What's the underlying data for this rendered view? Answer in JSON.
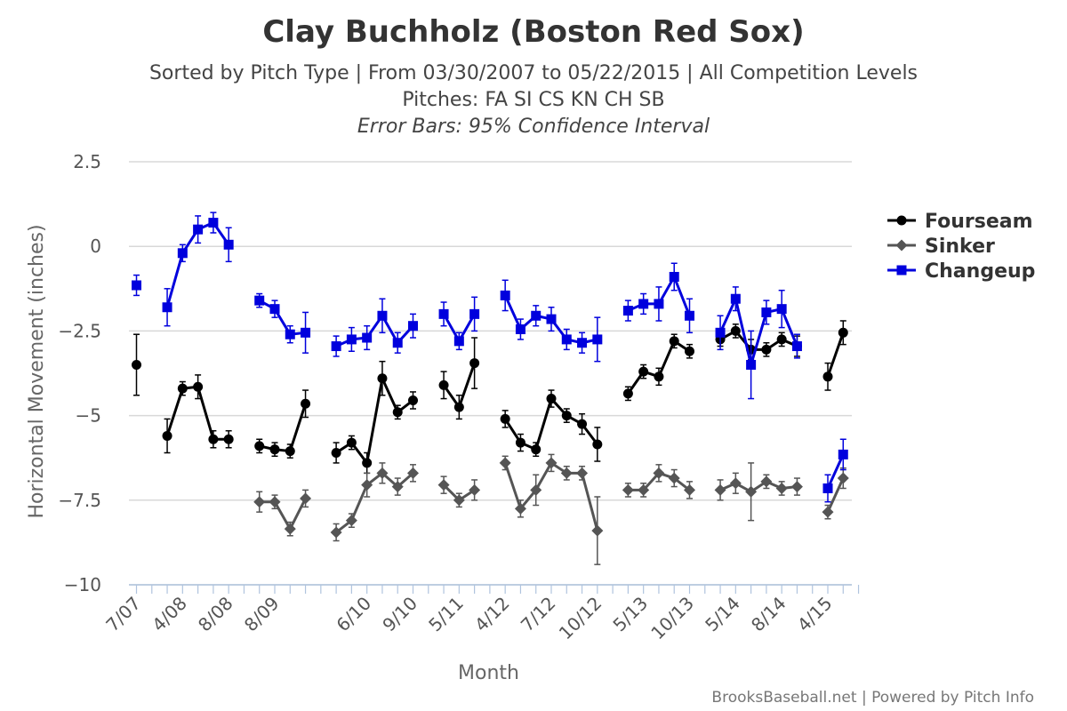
{
  "chart_data": {
    "type": "line",
    "title": "Clay Buchholz (Boston Red Sox)",
    "subtitle_lines": [
      "Sorted by Pitch Type | From 03/30/2007 to 05/22/2015 | All Competition Levels",
      "Pitches: FA SI CS KN CH SB"
    ],
    "error_bar_note": "Error Bars: 95% Confidence Interval",
    "xlabel": "Month",
    "ylabel": "Horizontal Movement (inches)",
    "ylim": [
      -10,
      2.5
    ],
    "y_ticks": [
      {
        "v": 2.5,
        "label": "2.5"
      },
      {
        "v": 0,
        "label": "0"
      },
      {
        "v": -2.5,
        "label": "−2.5"
      },
      {
        "v": -5,
        "label": "−5"
      },
      {
        "v": -7.5,
        "label": "−7.5"
      },
      {
        "v": -10,
        "label": "−10"
      }
    ],
    "x_index_range": [
      0,
      47
    ],
    "x_ticks": [
      {
        "i": 0,
        "label": "7/07"
      },
      {
        "i": 3,
        "label": "4/08"
      },
      {
        "i": 6,
        "label": "8/08"
      },
      {
        "i": 9,
        "label": "8/09"
      },
      {
        "i": 15,
        "label": "6/10"
      },
      {
        "i": 18,
        "label": "9/10"
      },
      {
        "i": 21,
        "label": "5/11"
      },
      {
        "i": 24,
        "label": "4/12"
      },
      {
        "i": 27,
        "label": "7/12"
      },
      {
        "i": 30,
        "label": "10/12"
      },
      {
        "i": 33,
        "label": "5/13"
      },
      {
        "i": 36,
        "label": "10/13"
      },
      {
        "i": 39,
        "label": "5/14"
      },
      {
        "i": 42,
        "label": "8/14"
      },
      {
        "i": 45,
        "label": "4/15"
      }
    ],
    "grid": true,
    "legend_position": "right",
    "series": [
      {
        "name": "Fourseam",
        "color": "#000000",
        "marker": "circle",
        "segments": [
          [
            [
              0,
              -3.5,
              0.9
            ]
          ],
          [
            [
              2,
              -5.6,
              0.5
            ],
            [
              3,
              -4.2,
              0.2
            ],
            [
              4,
              -4.15,
              0.35
            ],
            [
              5,
              -5.7,
              0.25
            ],
            [
              6,
              -5.7,
              0.25
            ]
          ],
          [
            [
              8,
              -5.9,
              0.2
            ],
            [
              9,
              -6.0,
              0.2
            ],
            [
              10,
              -6.05,
              0.2
            ],
            [
              11,
              -4.65,
              0.4
            ]
          ],
          [
            [
              13,
              -6.1,
              0.3
            ],
            [
              14,
              -5.8,
              0.2
            ],
            [
              15,
              -6.4,
              0.3
            ],
            [
              16,
              -3.9,
              0.5
            ],
            [
              17,
              -4.9,
              0.2
            ],
            [
              18,
              -4.55,
              0.25
            ]
          ],
          [
            [
              20,
              -4.1,
              0.4
            ],
            [
              21,
              -4.75,
              0.35
            ],
            [
              22,
              -3.45,
              0.75
            ]
          ],
          [
            [
              24,
              -5.1,
              0.25
            ],
            [
              25,
              -5.8,
              0.25
            ],
            [
              26,
              -6.0,
              0.2
            ],
            [
              27,
              -4.5,
              0.25
            ],
            [
              28,
              -5.0,
              0.2
            ],
            [
              29,
              -5.25,
              0.3
            ],
            [
              30,
              -5.85,
              0.5
            ]
          ],
          [
            [
              32,
              -4.35,
              0.2
            ],
            [
              33,
              -3.7,
              0.2
            ],
            [
              34,
              -3.85,
              0.25
            ],
            [
              35,
              -2.8,
              0.2
            ],
            [
              36,
              -3.1,
              0.2
            ]
          ],
          [
            [
              38,
              -2.75,
              0.2
            ],
            [
              39,
              -2.5,
              0.2
            ],
            [
              40,
              -3.05,
              0.3
            ],
            [
              41,
              -3.05,
              0.2
            ],
            [
              42,
              -2.75,
              0.2
            ],
            [
              43,
              -2.95,
              0.3
            ]
          ],
          [
            [
              45,
              -3.85,
              0.4
            ],
            [
              46,
              -2.55,
              0.35
            ]
          ]
        ]
      },
      {
        "name": "Sinker",
        "color": "#555555",
        "marker": "diamond",
        "segments": [
          [
            [
              8,
              -7.55,
              0.3
            ],
            [
              9,
              -7.55,
              0.2
            ],
            [
              10,
              -8.35,
              0.2
            ],
            [
              11,
              -7.45,
              0.25
            ]
          ],
          [
            [
              13,
              -8.45,
              0.25
            ],
            [
              14,
              -8.1,
              0.2
            ],
            [
              15,
              -7.05,
              0.35
            ],
            [
              16,
              -6.7,
              0.3
            ],
            [
              17,
              -7.1,
              0.25
            ],
            [
              18,
              -6.7,
              0.25
            ]
          ],
          [
            [
              20,
              -7.05,
              0.25
            ],
            [
              21,
              -7.5,
              0.2
            ],
            [
              22,
              -7.2,
              0.3
            ]
          ],
          [
            [
              24,
              -6.4,
              0.2
            ],
            [
              25,
              -7.75,
              0.25
            ],
            [
              26,
              -7.2,
              0.45
            ],
            [
              27,
              -6.4,
              0.25
            ],
            [
              28,
              -6.7,
              0.2
            ],
            [
              29,
              -6.7,
              0.2
            ],
            [
              30,
              -8.4,
              1.0
            ]
          ],
          [
            [
              32,
              -7.2,
              0.2
            ],
            [
              33,
              -7.2,
              0.2
            ],
            [
              34,
              -6.7,
              0.25
            ],
            [
              35,
              -6.85,
              0.25
            ],
            [
              36,
              -7.2,
              0.25
            ]
          ],
          [
            [
              38,
              -7.2,
              0.3
            ],
            [
              39,
              -7.0,
              0.3
            ],
            [
              40,
              -7.25,
              0.85
            ],
            [
              41,
              -6.95,
              0.2
            ],
            [
              42,
              -7.15,
              0.2
            ],
            [
              43,
              -7.1,
              0.25
            ]
          ],
          [
            [
              45,
              -7.85,
              0.2
            ],
            [
              46,
              -6.85,
              0.3
            ]
          ]
        ]
      },
      {
        "name": "Changeup",
        "color": "#0000dd",
        "marker": "square",
        "segments": [
          [
            [
              0,
              -1.15,
              0.3
            ]
          ],
          [
            [
              2,
              -1.8,
              0.55
            ],
            [
              3,
              -0.2,
              0.25
            ],
            [
              4,
              0.5,
              0.4
            ],
            [
              5,
              0.7,
              0.3
            ],
            [
              6,
              0.05,
              0.5
            ]
          ],
          [
            [
              8,
              -1.6,
              0.2
            ],
            [
              9,
              -1.85,
              0.25
            ],
            [
              10,
              -2.6,
              0.25
            ],
            [
              11,
              -2.55,
              0.6
            ]
          ],
          [
            [
              13,
              -2.95,
              0.3
            ],
            [
              14,
              -2.75,
              0.35
            ],
            [
              15,
              -2.7,
              0.35
            ],
            [
              16,
              -2.05,
              0.5
            ],
            [
              17,
              -2.85,
              0.3
            ],
            [
              18,
              -2.35,
              0.35
            ]
          ],
          [
            [
              20,
              -2.0,
              0.35
            ],
            [
              21,
              -2.8,
              0.25
            ],
            [
              22,
              -2.0,
              0.5
            ]
          ],
          [
            [
              24,
              -1.45,
              0.45
            ],
            [
              25,
              -2.45,
              0.3
            ],
            [
              26,
              -2.05,
              0.3
            ],
            [
              27,
              -2.15,
              0.35
            ],
            [
              28,
              -2.75,
              0.3
            ],
            [
              29,
              -2.85,
              0.3
            ],
            [
              30,
              -2.75,
              0.65
            ]
          ],
          [
            [
              32,
              -1.9,
              0.3
            ],
            [
              33,
              -1.7,
              0.3
            ],
            [
              34,
              -1.7,
              0.5
            ],
            [
              35,
              -0.9,
              0.4
            ],
            [
              36,
              -2.05,
              0.5
            ]
          ],
          [
            [
              38,
              -2.55,
              0.5
            ],
            [
              39,
              -1.55,
              0.35
            ],
            [
              40,
              -3.5,
              1.0
            ],
            [
              41,
              -1.95,
              0.35
            ],
            [
              42,
              -1.85,
              0.55
            ],
            [
              43,
              -2.95,
              0.35
            ]
          ],
          [
            [
              45,
              -7.15,
              0.4
            ],
            [
              46,
              -6.15,
              0.45
            ]
          ]
        ]
      }
    ]
  },
  "footer": {
    "credit": "BrooksBaseball.net | Powered by Pitch Info"
  }
}
